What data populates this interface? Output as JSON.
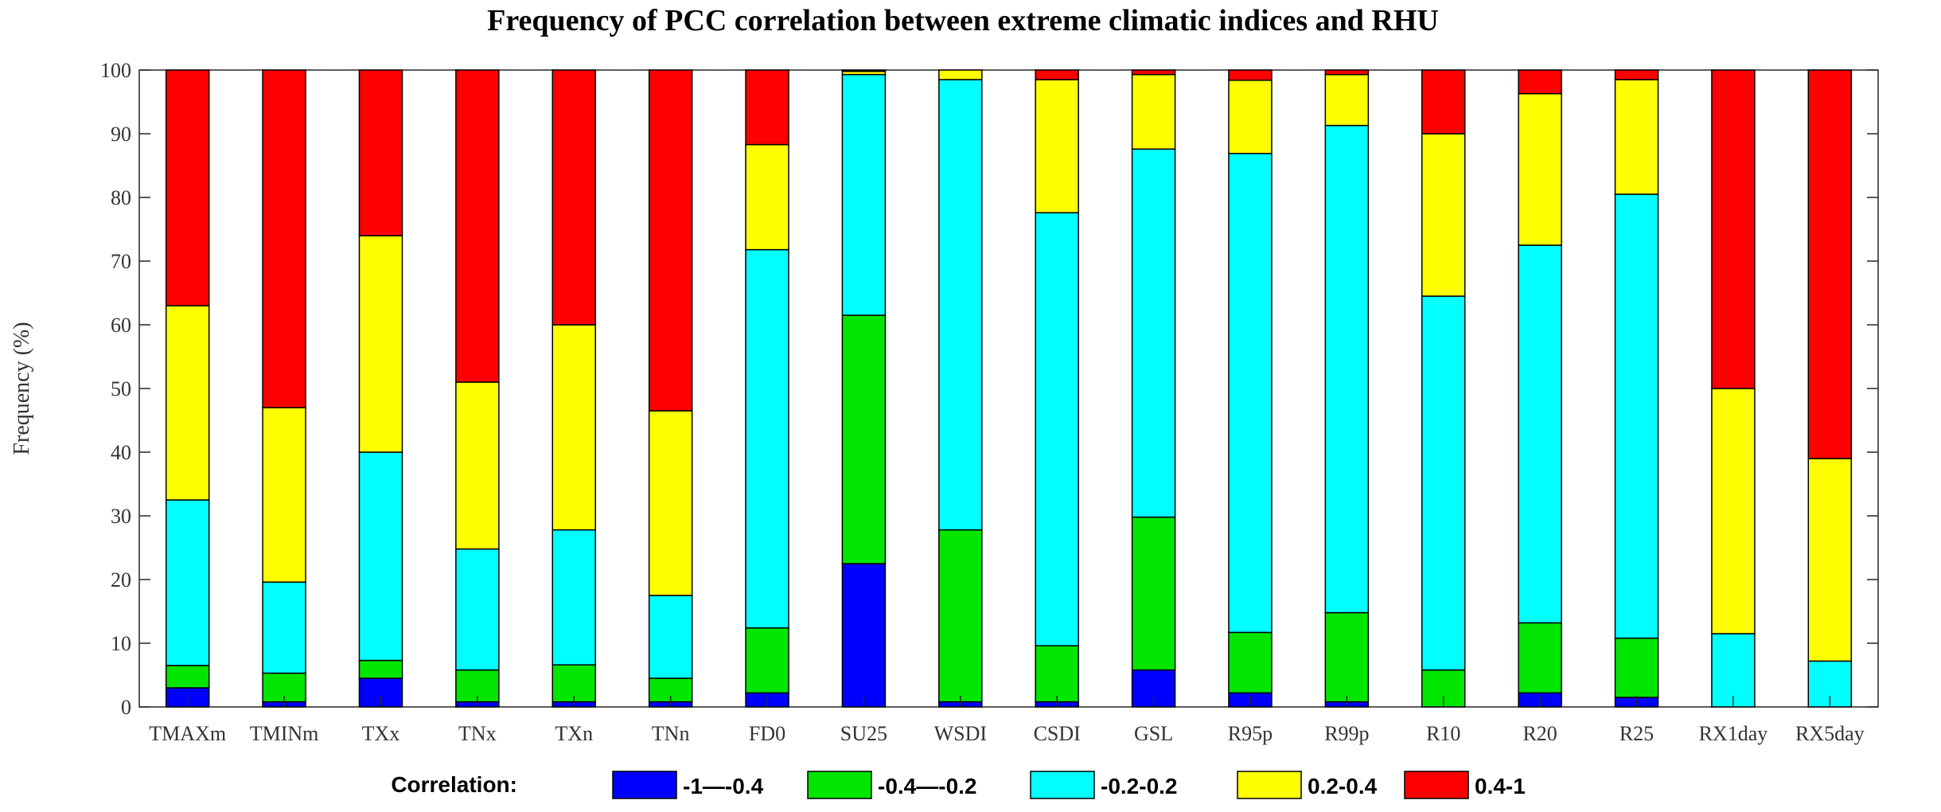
{
  "chart_data": {
    "type": "bar",
    "stacked": true,
    "title": "Frequency of PCC correlation between extreme climatic indices and RHU",
    "xlabel": "",
    "ylabel": "Frequency (%)",
    "ylim": [
      0,
      100
    ],
    "yticks": [
      0,
      10,
      20,
      30,
      40,
      50,
      60,
      70,
      80,
      90,
      100
    ],
    "grid": false,
    "legend_title": "Correlation:",
    "legend_position": "bottom",
    "categories": [
      "TMAXm",
      "TMINm",
      "TXx",
      "TNx",
      "TXn",
      "TNn",
      "FD0",
      "SU25",
      "WSDI",
      "CSDI",
      "GSL",
      "R95p",
      "R99p",
      "R10",
      "R20",
      "R25",
      "RX1day",
      "RX5day"
    ],
    "series": [
      {
        "name": "-1—-0.4",
        "color": "#0000ff",
        "values": [
          3.0,
          0.8,
          4.5,
          0.8,
          0.8,
          0.8,
          2.2,
          22.5,
          0.8,
          0.8,
          5.8,
          2.2,
          0.8,
          0.0,
          2.2,
          1.5,
          0.0,
          0.0
        ]
      },
      {
        "name": "-0.4—-0.2",
        "color": "#00e600",
        "values": [
          3.5,
          4.5,
          2.8,
          5.0,
          5.8,
          3.7,
          10.2,
          39.0,
          27.0,
          8.8,
          24.0,
          9.5,
          14.0,
          5.8,
          11.0,
          9.3,
          0.0,
          0.0
        ]
      },
      {
        "name": "-0.2-0.2",
        "color": "#00ffff",
        "values": [
          26.0,
          14.3,
          32.7,
          19.0,
          21.2,
          13.0,
          59.4,
          37.8,
          70.7,
          68.0,
          57.8,
          75.2,
          76.5,
          58.7,
          59.3,
          69.7,
          11.5,
          7.2
        ]
      },
      {
        "name": "0.2-0.4",
        "color": "#ffff00",
        "values": [
          30.5,
          27.4,
          34.0,
          26.2,
          32.2,
          29.0,
          16.5,
          0.5,
          1.5,
          20.9,
          11.7,
          11.5,
          8.0,
          25.5,
          23.8,
          18.0,
          38.5,
          31.8
        ]
      },
      {
        "name": "0.4-1",
        "color": "#ff0000",
        "values": [
          37.0,
          53.0,
          26.0,
          49.0,
          40.0,
          53.5,
          11.7,
          0.2,
          0.0,
          1.5,
          0.7,
          1.6,
          0.7,
          10.0,
          3.7,
          1.5,
          50.0,
          61.0
        ]
      }
    ]
  }
}
